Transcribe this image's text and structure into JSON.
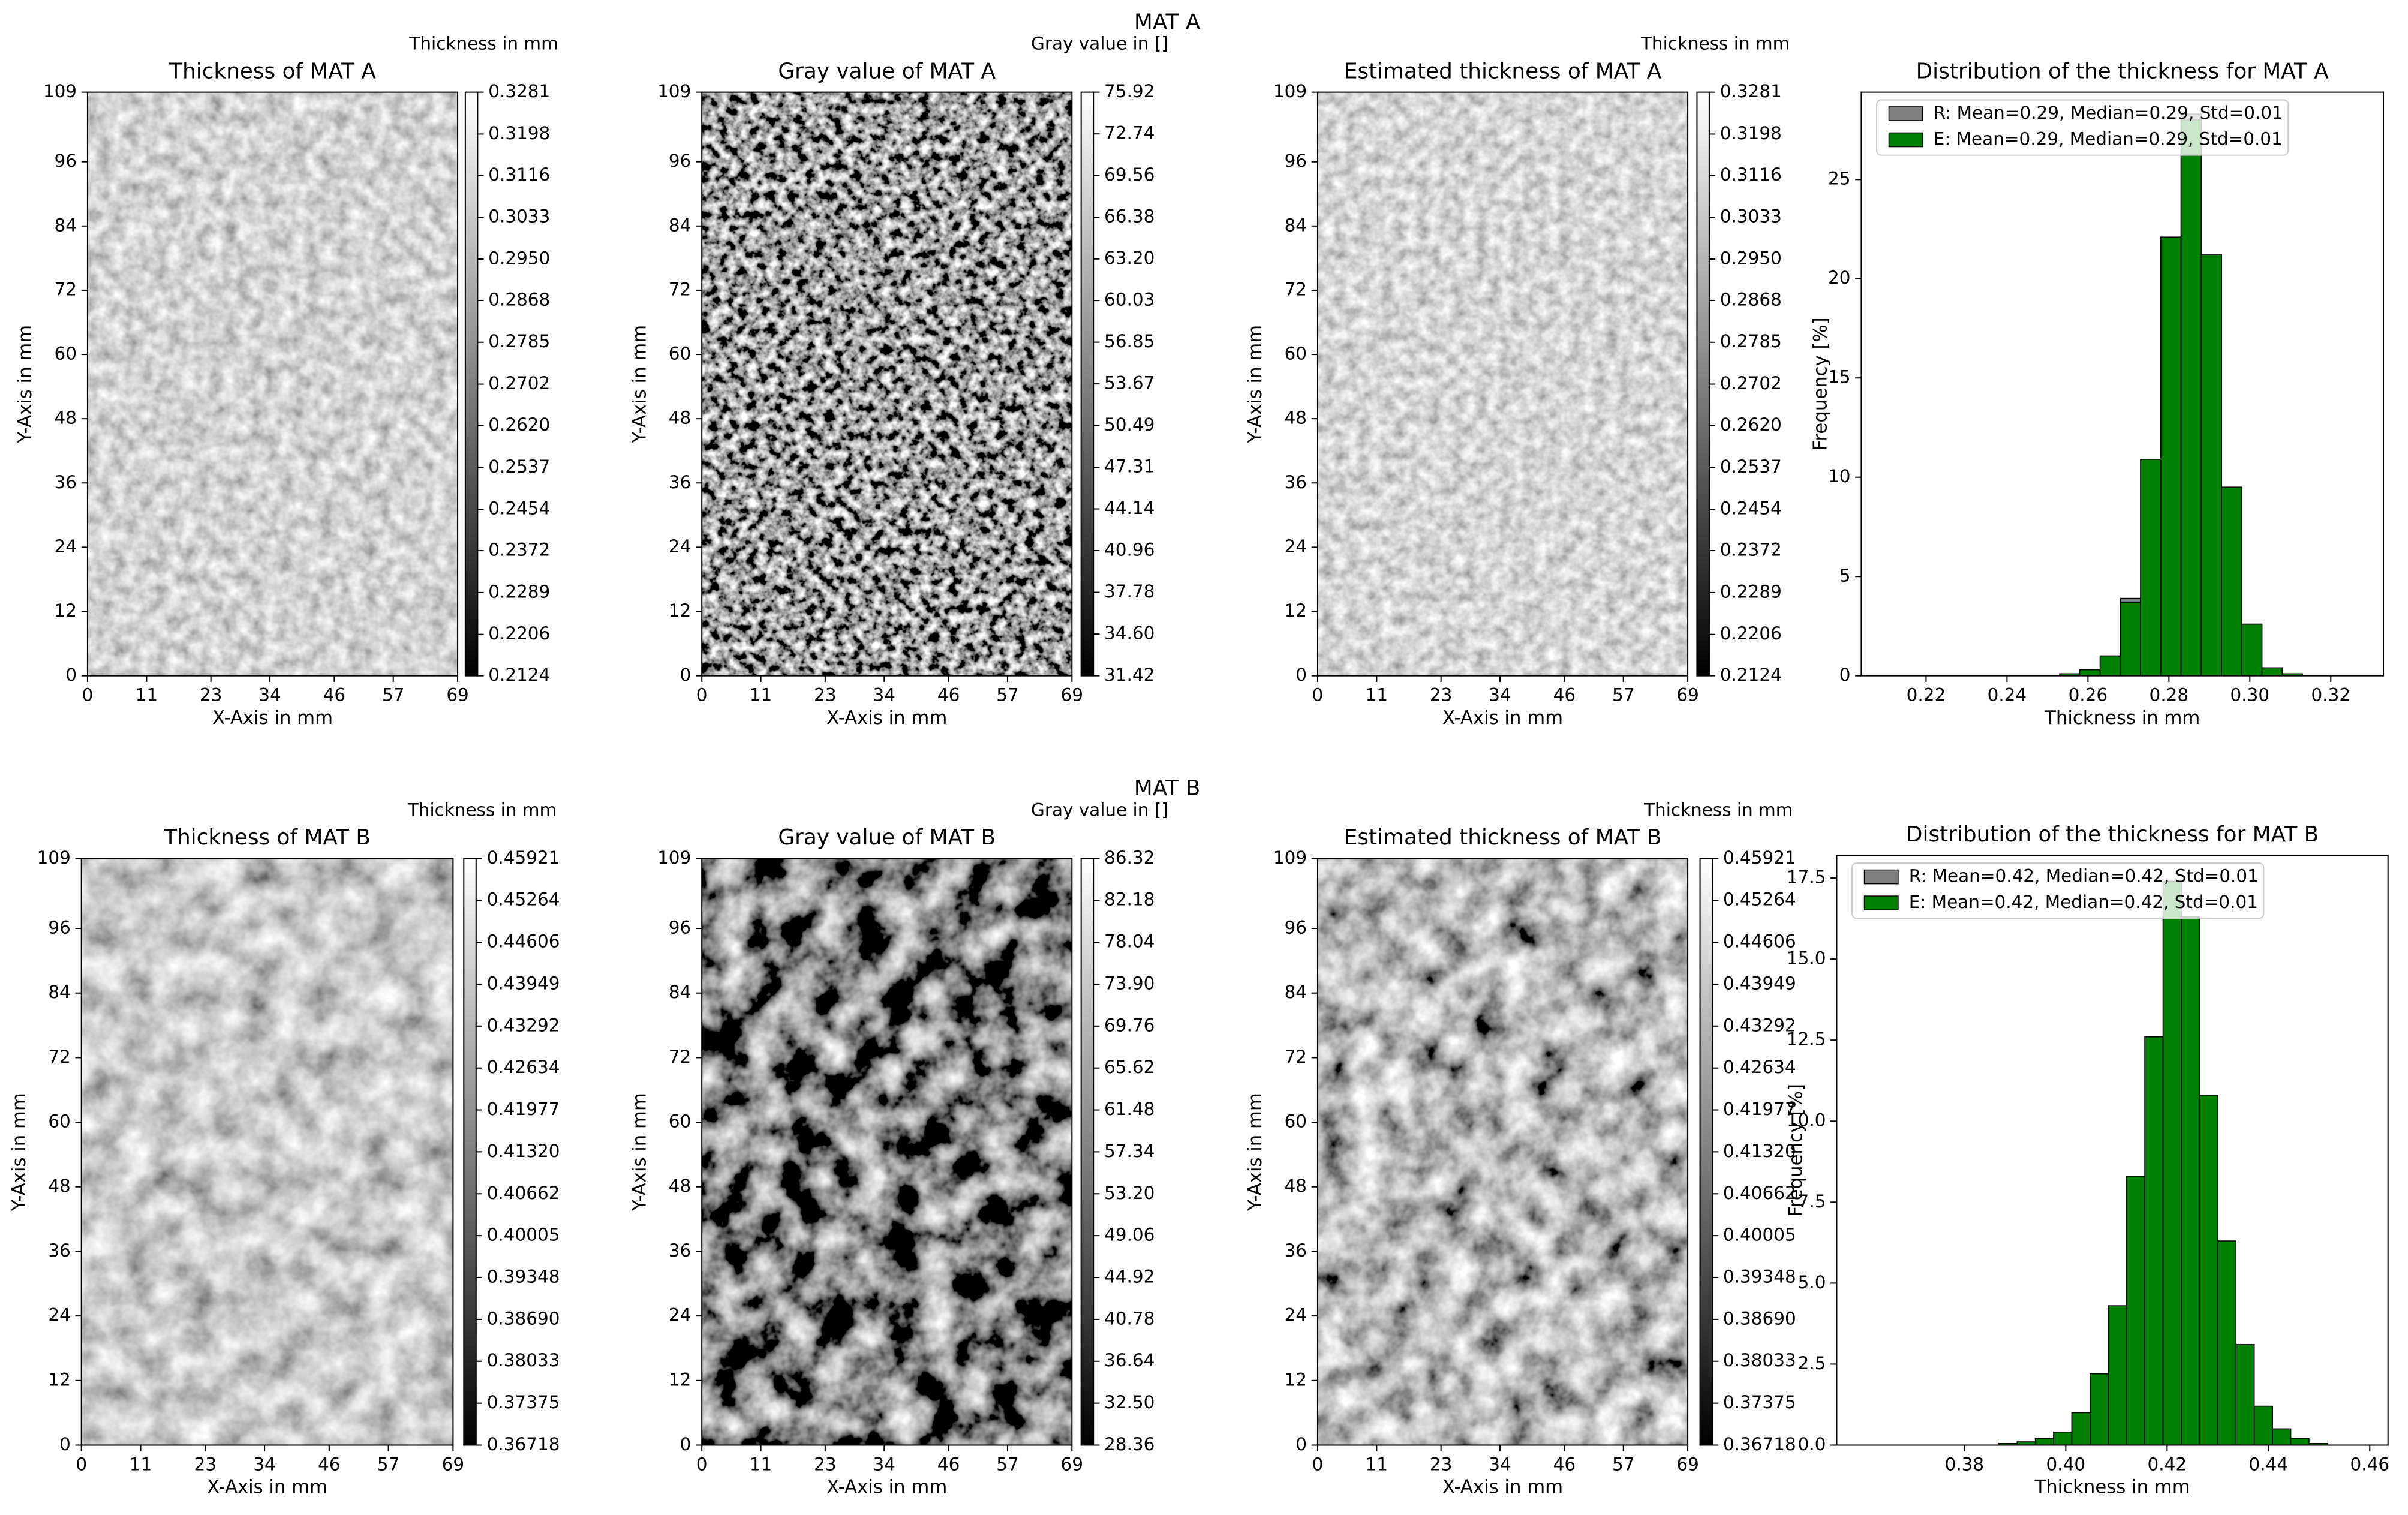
{
  "suptitles": [
    "MAT A",
    "MAT B"
  ],
  "chart_data": [
    {
      "type": "heatmap",
      "title": "Thickness of MAT A",
      "xlabel": "X-Axis in mm",
      "ylabel": "Y-Axis in mm",
      "colorbar_label": "Thickness in mm",
      "cmap": "gray",
      "xlim": [
        0,
        69
      ],
      "ylim": [
        0,
        109
      ],
      "xticks": [
        0,
        11,
        23,
        34,
        46,
        57,
        69
      ],
      "yticks": [
        0,
        12,
        24,
        36,
        48,
        60,
        72,
        84,
        96,
        109
      ],
      "clim": [
        0.2124,
        0.3281
      ],
      "cticks": [
        0.3281,
        0.3198,
        0.3116,
        0.3033,
        {
          "value": 0.295,
          "label": "0.2950"
        },
        0.2868,
        0.2785,
        0.2702,
        {
          "value": 0.262,
          "label": "0.2620"
        },
        0.2537,
        0.2454,
        0.2372,
        0.2289,
        0.2206,
        0.2124
      ]
    },
    {
      "type": "heatmap",
      "title": "Gray value of MAT A",
      "xlabel": "X-Axis in mm",
      "ylabel": "Y-Axis in mm",
      "colorbar_label": "Gray value in []",
      "cmap": "gray",
      "xlim": [
        0,
        69
      ],
      "ylim": [
        0,
        109
      ],
      "xticks": [
        0,
        11,
        23,
        34,
        46,
        57,
        69
      ],
      "yticks": [
        0,
        12,
        24,
        36,
        48,
        60,
        72,
        84,
        96,
        109
      ],
      "clim": [
        31.42,
        75.92
      ],
      "cticks": [
        75.92,
        72.74,
        69.56,
        66.38,
        {
          "value": 63.2,
          "label": "63.20"
        },
        60.03,
        56.85,
        53.67,
        50.49,
        47.31,
        44.14,
        40.96,
        37.78,
        {
          "value": 34.6,
          "label": "34.60"
        },
        31.42
      ]
    },
    {
      "type": "heatmap",
      "title": "Estimated thickness of MAT A",
      "xlabel": "X-Axis in mm",
      "ylabel": "Y-Axis in mm",
      "colorbar_label": "Thickness in mm",
      "cmap": "gray",
      "xlim": [
        0,
        69
      ],
      "ylim": [
        0,
        109
      ],
      "xticks": [
        0,
        11,
        23,
        34,
        46,
        57,
        69
      ],
      "yticks": [
        0,
        12,
        24,
        36,
        48,
        60,
        72,
        84,
        96,
        109
      ],
      "clim": [
        0.2124,
        0.3281
      ],
      "cticks": [
        0.3281,
        0.3198,
        0.3116,
        0.3033,
        {
          "value": 0.295,
          "label": "0.2950"
        },
        0.2868,
        0.2785,
        0.2702,
        {
          "value": 0.262,
          "label": "0.2620"
        },
        0.2537,
        0.2454,
        0.2372,
        0.2289,
        0.2206,
        0.2124
      ]
    },
    {
      "type": "histogram",
      "title": "Distribution of the thickness for MAT A",
      "xlabel": "Thickness in mm",
      "ylabel": "Frequency [%]",
      "legend": "upper left",
      "bins": [
        0.253,
        0.258,
        0.263,
        0.268,
        0.273,
        0.278,
        0.283,
        0.288,
        0.293,
        0.298,
        0.303,
        0.308,
        0.313
      ],
      "series": [
        {
          "name": "R: Mean=0.29, Median=0.29, Std=0.01",
          "color": "#808080",
          "values": [
            0.1,
            0.3,
            1.0,
            3.9,
            10.9,
            22.1,
            28.3,
            21.2,
            9.5,
            2.6,
            0.4,
            0.1
          ]
        },
        {
          "name": "E: Mean=0.29, Median=0.29, Std=0.01",
          "color": "#008000",
          "values": [
            0.1,
            0.3,
            1.0,
            3.7,
            10.9,
            22.1,
            28.0,
            21.2,
            9.5,
            2.6,
            0.4,
            0.1
          ]
        }
      ],
      "xlim": [
        0.204,
        0.333
      ],
      "ylim": [
        0,
        29.4
      ],
      "xticks": [
        0.22,
        0.24,
        0.26,
        0.28,
        {
          "value": 0.3,
          "label": "0.30"
        },
        0.32
      ],
      "yticks": [
        0,
        5,
        10,
        15,
        20,
        25
      ]
    },
    {
      "type": "heatmap",
      "title": "Thickness of MAT B",
      "xlabel": "X-Axis in mm",
      "ylabel": "Y-Axis in mm",
      "colorbar_label": "Thickness in mm",
      "cmap": "gray",
      "xlim": [
        0,
        69
      ],
      "ylim": [
        0,
        109
      ],
      "xticks": [
        0,
        11,
        23,
        34,
        46,
        57,
        69
      ],
      "yticks": [
        0,
        12,
        24,
        36,
        48,
        60,
        72,
        84,
        96,
        109
      ],
      "clim": [
        0.36718,
        0.45921
      ],
      "cticks": [
        0.45921,
        0.45264,
        0.44606,
        0.43949,
        0.43292,
        0.42634,
        0.41977,
        {
          "value": 0.4132,
          "label": "0.41320"
        },
        0.40662,
        0.40005,
        0.39348,
        {
          "value": 0.3869,
          "label": "0.38690"
        },
        0.38033,
        0.37375,
        0.36718
      ]
    },
    {
      "type": "heatmap",
      "title": "Gray value of MAT B",
      "xlabel": "X-Axis in mm",
      "ylabel": "Y-Axis in mm",
      "colorbar_label": "Gray value in []",
      "cmap": "gray",
      "xlim": [
        0,
        69
      ],
      "ylim": [
        0,
        109
      ],
      "xticks": [
        0,
        11,
        23,
        34,
        46,
        57,
        69
      ],
      "yticks": [
        0,
        12,
        24,
        36,
        48,
        60,
        72,
        84,
        96,
        109
      ],
      "clim": [
        28.36,
        86.32
      ],
      "cticks": [
        86.32,
        82.18,
        78.04,
        {
          "value": 73.9,
          "label": "73.90"
        },
        69.76,
        65.62,
        61.48,
        57.34,
        {
          "value": 53.2,
          "label": "53.20"
        },
        49.06,
        44.92,
        40.78,
        36.64,
        {
          "value": 32.5,
          "label": "32.50"
        },
        28.36
      ]
    },
    {
      "type": "heatmap",
      "title": "Estimated thickness of MAT B",
      "xlabel": "X-Axis in mm",
      "ylabel": "Y-Axis in mm",
      "colorbar_label": "Thickness in mm",
      "cmap": "gray",
      "xlim": [
        0,
        69
      ],
      "ylim": [
        0,
        109
      ],
      "xticks": [
        0,
        11,
        23,
        34,
        46,
        57,
        69
      ],
      "yticks": [
        0,
        12,
        24,
        36,
        48,
        60,
        72,
        84,
        96,
        109
      ],
      "clim": [
        0.36718,
        0.45921
      ],
      "cticks": [
        0.45921,
        0.45264,
        0.44606,
        0.43949,
        0.43292,
        0.42634,
        0.41977,
        {
          "value": 0.4132,
          "label": "0.41320"
        },
        0.40662,
        0.40005,
        0.39348,
        {
          "value": 0.3869,
          "label": "0.38690"
        },
        0.38033,
        0.37375,
        0.36718
      ]
    },
    {
      "type": "histogram",
      "title": "Distribution of the thickness for MAT B",
      "xlabel": "Thickness in mm",
      "ylabel": "Frequency [%]",
      "legend": "upper left",
      "bins": [
        0.3868,
        0.3904,
        0.394,
        0.3976,
        0.4012,
        0.4048,
        0.4084,
        0.412,
        0.4156,
        0.4192,
        0.4228,
        0.4264,
        0.43,
        0.4336,
        0.4372,
        0.4408,
        0.4444,
        0.448,
        0.4516
      ],
      "series": [
        {
          "name": "R: Mean=0.42, Median=0.42, Std=0.01",
          "color": "#808080",
          "values": [
            0.05,
            0.1,
            0.2,
            0.4,
            1.0,
            2.2,
            4.3,
            8.3,
            12.6,
            17.4,
            16.3,
            10.8,
            6.3,
            3.1,
            1.2,
            0.5,
            0.2,
            0.05
          ]
        },
        {
          "name": "E: Mean=0.42, Median=0.42, Std=0.01",
          "color": "#008000",
          "values": [
            0.05,
            0.1,
            0.2,
            0.4,
            1.0,
            2.2,
            4.3,
            8.3,
            12.6,
            17.4,
            16.3,
            10.8,
            6.3,
            3.1,
            1.2,
            0.5,
            0.2,
            0.05
          ]
        }
      ],
      "xlim": [
        0.3548,
        0.4636
      ],
      "ylim": [
        0,
        18.2
      ],
      "xticks": [
        0.38,
        {
          "value": 0.4,
          "label": "0.40"
        },
        0.42,
        0.44,
        0.46
      ],
      "yticks": [
        {
          "value": 0,
          "label": "0.0"
        },
        2.5,
        {
          "value": 5,
          "label": "5.0"
        },
        7.5,
        {
          "value": 10,
          "label": "10.0"
        },
        12.5,
        {
          "value": 15,
          "label": "15.0"
        },
        17.5
      ]
    }
  ]
}
